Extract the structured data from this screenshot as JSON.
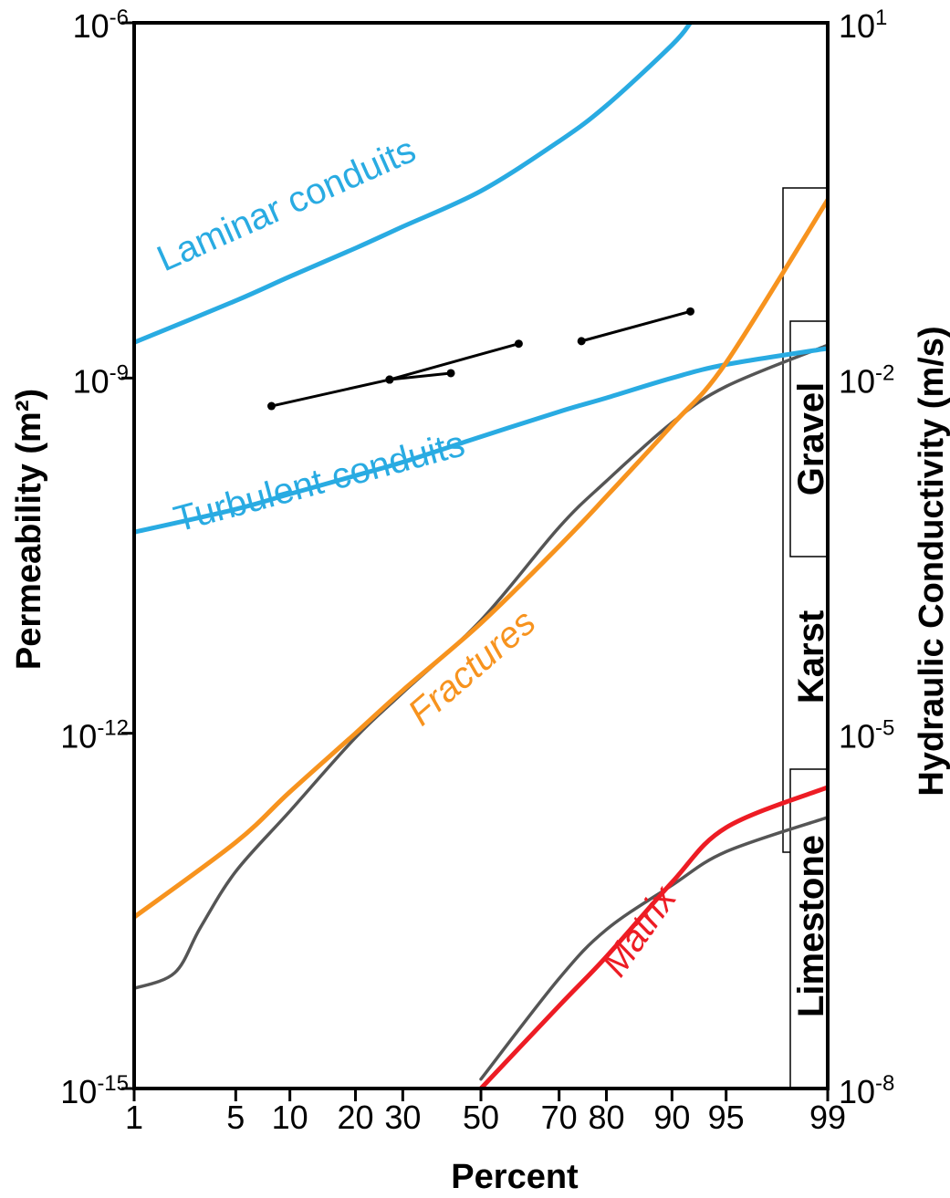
{
  "chart_data": {
    "type": "line",
    "title": "",
    "xlabel": "Percent",
    "ylabel": "Permeability (m²)",
    "y2label": "Hydraulic Conductivity (m/s)",
    "x_scale": "probability",
    "y_scale": "log",
    "xlim": [
      1,
      99
    ],
    "ylim": [
      1e-15,
      1e-06
    ],
    "y2lim": [
      1e-08,
      10
    ],
    "x_ticks": [
      {
        "value": 1,
        "label": "1"
      },
      {
        "value": 5,
        "label": "5"
      },
      {
        "value": 10,
        "label": "10"
      },
      {
        "value": 20,
        "label": "20"
      },
      {
        "value": 30,
        "label": "30"
      },
      {
        "value": 50,
        "label": "50"
      },
      {
        "value": 70,
        "label": "70"
      },
      {
        "value": 80,
        "label": "80"
      },
      {
        "value": 90,
        "label": "90"
      },
      {
        "value": 95,
        "label": "95"
      },
      {
        "value": 99,
        "label": "99"
      }
    ],
    "y_ticks": [
      {
        "value": 1e-15,
        "base": "10",
        "exp": "-15"
      },
      {
        "value": 1e-12,
        "base": "10",
        "exp": "-12"
      },
      {
        "value": 1e-09,
        "base": "10",
        "exp": "-9"
      },
      {
        "value": 1e-06,
        "base": "10",
        "exp": "-6"
      }
    ],
    "y2_ticks": [
      {
        "value": 1e-08,
        "base": "10",
        "exp": "-8"
      },
      {
        "value": 1e-05,
        "base": "10",
        "exp": "-5"
      },
      {
        "value": 0.01,
        "base": "10",
        "exp": "-2"
      },
      {
        "value": 10,
        "base": "10",
        "exp": "1"
      }
    ],
    "series": [
      {
        "name": "Laminar conduits",
        "color": "#29abe2",
        "x": [
          1,
          5,
          10,
          20,
          30,
          50,
          70,
          80,
          90,
          92
        ],
        "y": [
          2e-09,
          4.5e-09,
          7.2e-09,
          1.25e-08,
          1.9e-08,
          3.8e-08,
          1e-07,
          2e-07,
          6.5e-07,
          1e-06
        ]
      },
      {
        "name": "Turbulent conduits",
        "color": "#29abe2",
        "x": [
          1,
          5,
          10,
          20,
          30,
          50,
          70,
          80,
          90,
          95,
          99
        ],
        "y": [
          5e-11,
          7.8e-11,
          1.05e-10,
          1.5e-10,
          1.95e-10,
          3.2e-10,
          5.2e-10,
          6.8e-10,
          1e-09,
          1.3e-09,
          1.78e-09
        ]
      },
      {
        "name": "Fractures",
        "color": "#f7931e",
        "x": [
          1,
          5,
          10,
          20,
          30,
          50,
          70,
          80,
          90,
          95,
          99
        ],
        "y": [
          2.8e-14,
          1.2e-13,
          3.2e-13,
          1e-12,
          2.3e-12,
          8.5e-12,
          3.8e-11,
          1e-10,
          4e-10,
          1.35e-09,
          3.2e-08
        ]
      },
      {
        "name": "Matrix",
        "color": "#ed1c24",
        "x": [
          50,
          70,
          80,
          90,
          95,
          99
        ],
        "y": [
          1e-15,
          5e-15,
          1.3e-14,
          5.5e-14,
          1.6e-13,
          3.5e-13
        ]
      },
      {
        "name": "",
        "color": "#555555",
        "x": [
          1,
          2,
          3,
          5,
          10,
          20,
          30,
          50,
          70,
          80,
          90,
          95,
          99
        ],
        "y": [
          7e-15,
          9.5e-15,
          2.3e-14,
          6.8e-14,
          2.2e-13,
          9.2e-13,
          2.2e-12,
          9e-12,
          5.5e-11,
          1.35e-10,
          4.2e-10,
          8.5e-10,
          1.9e-09
        ]
      },
      {
        "name": "",
        "color": "#555555",
        "x": [
          50,
          70,
          80,
          90,
          95,
          99
        ],
        "y": [
          1.2e-15,
          8.5e-15,
          2.2e-14,
          5.2e-14,
          1e-13,
          1.95e-13
        ]
      }
    ],
    "measured_segments": [
      {
        "x": [
          8,
          27
        ],
        "y": [
          5.8e-10,
          9.7e-10
        ]
      },
      {
        "x": [
          27,
          42
        ],
        "y": [
          9.7e-10,
          1.1e-09
        ]
      },
      {
        "x": [
          27,
          60
        ],
        "y": [
          9.7e-10,
          1.95e-09
        ]
      },
      {
        "x": [
          75,
          92
        ],
        "y": [
          2.05e-09,
          3.65e-09
        ]
      }
    ],
    "annotations": [
      {
        "text": "Laminar conduits",
        "color": "#29abe2"
      },
      {
        "text": "Turbulent conduits",
        "color": "#29abe2"
      },
      {
        "text": "Fractures",
        "color": "#f7931e"
      },
      {
        "text": "Matrix",
        "color": "#ed1c24"
      }
    ],
    "rock_bars": [
      {
        "label": "Gravel",
        "y_range": [
          1e-10,
          3.2e-08
        ]
      },
      {
        "label": "Karst",
        "y_range": [
          4e-14,
          3.2e-08
        ]
      },
      {
        "label": "Limestone",
        "y_range": [
          1e-15,
          1.2e-12
        ]
      }
    ]
  }
}
